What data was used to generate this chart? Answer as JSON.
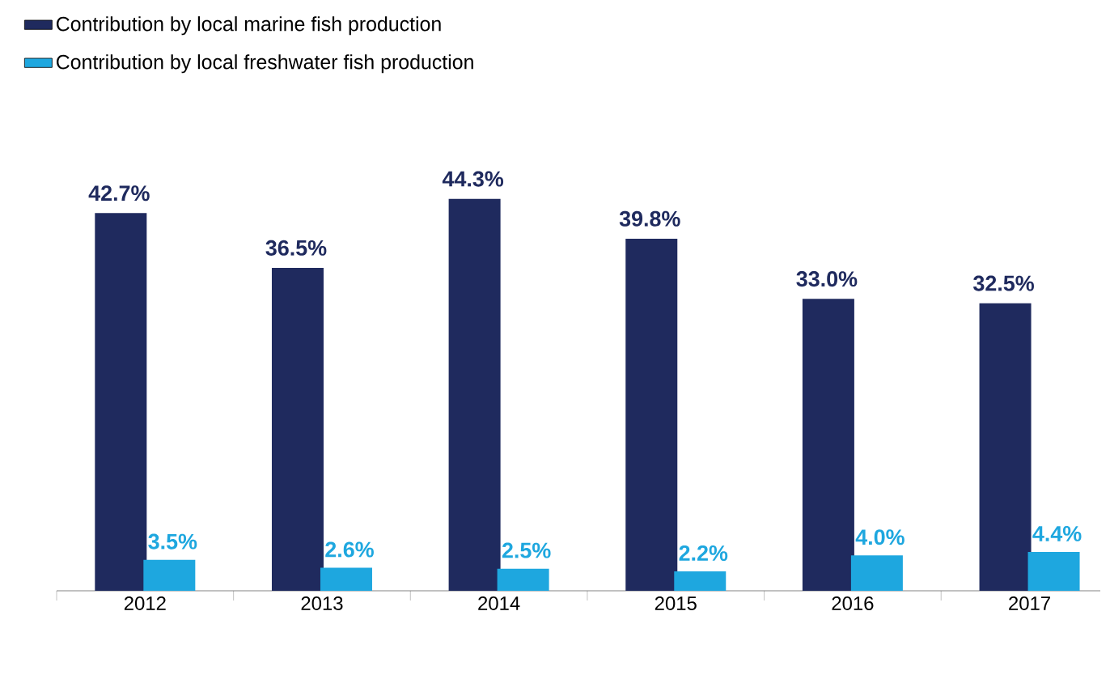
{
  "chart_data": {
    "type": "bar",
    "categories": [
      "2012",
      "2013",
      "2014",
      "2015",
      "2016",
      "2017"
    ],
    "series": [
      {
        "name": "Contribution by local marine fish production",
        "color": "#1f2a5e",
        "values": [
          42.7,
          36.5,
          44.3,
          39.8,
          33.0,
          32.5
        ],
        "value_labels": [
          "42.7%",
          "36.5%",
          "44.3%",
          "39.8%",
          "33.0%",
          "32.5%"
        ]
      },
      {
        "name": "Contribution by local freshwater fish production",
        "color": "#1ea7df",
        "values": [
          3.5,
          2.6,
          2.5,
          2.2,
          4.0,
          4.4
        ],
        "value_labels": [
          "3.5%",
          "2.6%",
          "2.5%",
          "2.2%",
          "4.0%",
          "4.4%"
        ]
      }
    ],
    "legend": "top left"
  }
}
